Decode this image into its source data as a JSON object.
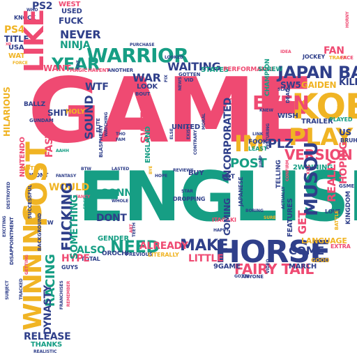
{
  "palette": {
    "dark_blue": "#2f3f8a",
    "pink": "#ef4a72",
    "teal": "#169e84",
    "yellow": "#f0b424"
  },
  "words": {
    "game": "GAME",
    "english": "ENGLISH",
    "koei": "KOEI",
    "horse": "HORSE",
    "play": "PLAY",
    "warrior": "WARRIOR",
    "japan_bad": "JAPAN BAD",
    "year": "YEAR",
    "like": "LIKE",
    "post_big": "POST",
    "winning": "WINNING",
    "musou": "MUSOU",
    "version": "VERSION",
    "fairy_tail": "FAIRY TAIL",
    "make": "MAKE",
    "need": "NEED",
    "fucking": "FUCKING",
    "even": "EVEN",
    "im": "IM",
    "plz": "PLZ",
    "post_small": "POST",
    "gonna": "GONNA",
    "dont": "DONT",
    "would": "WOULD",
    "switch": "SWITCH",
    "sound": "SOUND",
    "wtf": "WTF",
    "want": "WANT",
    "never": "NEVER",
    "ninja": "NINJA",
    "ps4": "PS4",
    "title": "TITLE",
    "usa": "USA",
    "fuck": "FUCK",
    "used": "USED",
    "waiting": "WAITING",
    "war": "WAR",
    "look": "LOOK",
    "racing": "RACING",
    "dynasty": "DYNASTY",
    "release": "RELEASE",
    "hype": "HYPE",
    "fan": "FAN",
    "already": "ALREADY",
    "little": "LITTLE",
    "come": "COME",
    "really": "REALLY",
    "hoping": "HOPING",
    "get": "GET",
    "language": "LANGUAGE",
    "coming": "COMING",
    "incorporated": "INCORPORATED",
    "trailer": "TRAILER",
    "fast": "FAST",
    "hilarious": "HILARIOUS",
    "kill": "KILL",
    "states": "STATES",
    "performance": "PERFORMANCE",
    "sw5": "SW5",
    "gaiden": "GAIDEN",
    "united": "UNITED",
    "holy": "HOLY",
    "shit": "SHIT",
    "thanks": "THANKS",
    "9game": "9GAME",
    "march": "MARCH",
    "also": "ALSO",
    "something": "SOMETHING",
    "gender": "GENDER",
    "nintendo": "NINTENDO",
    "gundam": "GUNDAM",
    "ballz": "BALLZ",
    "ps2": "PS2",
    "knock": "KNOCK",
    "wat": "WAT",
    "west": "WEST",
    "jockey": "JOCKEY",
    "orochi": "OROCHI",
    "uk": "UK",
    "another": "ANOTHER",
    "magic": "MAGIC",
    "havent": "HAVENT",
    "gotten": "GOTTEN",
    "vid": "VID",
    "screw": "SCREW",
    "champion": "CHAMPION",
    "featuring": "FEATURING",
    "2winning": "2WINNING",
    "lot": "LOT",
    "buy": "BUY",
    "reviews": "REVIEWS",
    "itagaki": "ITAGAKI",
    "dropping": "DROPPING",
    "japanese": "JAPANESE",
    "features": "FEATURES",
    "played": "PLAYED",
    "wish": "WISH",
    "us": "US",
    "bruh": "BRUH",
    "extra": "EXTRA",
    "good": "GOOD",
    "realistic": "REALISTIC",
    "telling": "TELLING",
    "england": "ENGLAND",
    "fook": "FOOK",
    "least": "LEAST",
    "literally": "LITERALLY",
    "total": "TOTAL",
    "previous": "PREVIOUS",
    "guys": "GUYS",
    "nothin": "NOTHIN",
    "wont": "WONT",
    "love": "LOVE",
    "kingdom": "KINGDOM",
    "bout": "BOUT",
    "bye": "BYE",
    "fam": "FAM",
    "tho": "THO",
    "edge": "EDGE",
    "art": "ART",
    "anyone": "ANYONE",
    "gotta": "GOTTA",
    "happy": "HAPPY",
    "teeth": "TEETH",
    "video": "VIDEO",
    "boring": "BORING",
    "sure": "SURE",
    "star": "STAR",
    "whole": "WHOLE",
    "lasted": "LASTED",
    "elite": "ELITE",
    "blasphemy": "BLASPHEMY",
    "watching": "WATCHING",
    "fix": "FIX",
    "idea": "IDEA",
    "purchase": "PURCHASE",
    "looked": "LOOKED",
    "horny": "HORNY",
    "track": "TRACK",
    "face": "FACE",
    "slam": "SLAM",
    "dead": "DEAD",
    "jump": "JUMP",
    "link": "LINK",
    "knew": "KNEW",
    "fool": "FOOL",
    "confirm": "CONFIRM",
    "actually": "ACTUALLY",
    "battle": "BATTLE",
    "kill_small": "KILL",
    "gsme": "GSME",
    "hope": "HOPE",
    "fancy": "FANCY",
    "fantasy": "FANTASY",
    "successful": "SUCCESSFUL",
    "exciting": "EXCITING",
    "disappointment": "DISAPPOINTMENT",
    "destroyed": "DESTROYED",
    "subject": "SUBJECT",
    "tracked": "TRACKED",
    "getting": "GETTING",
    "franchises": "FRANCHISES",
    "remember": "REMEMBER",
    "background": "BACKGROUND",
    "who": "WHO",
    "force": "FORCE",
    "xd": "XD",
    "aahh": "AAHH",
    "btw": "BTW",
    "news": "NEWS",
    "kdz": "KDZ",
    "new": "NEW",
    "contrary": "CONTRARY",
    "moral": "MORAL",
    "else": "ELSE",
    "exist": "EXIST"
  }
}
